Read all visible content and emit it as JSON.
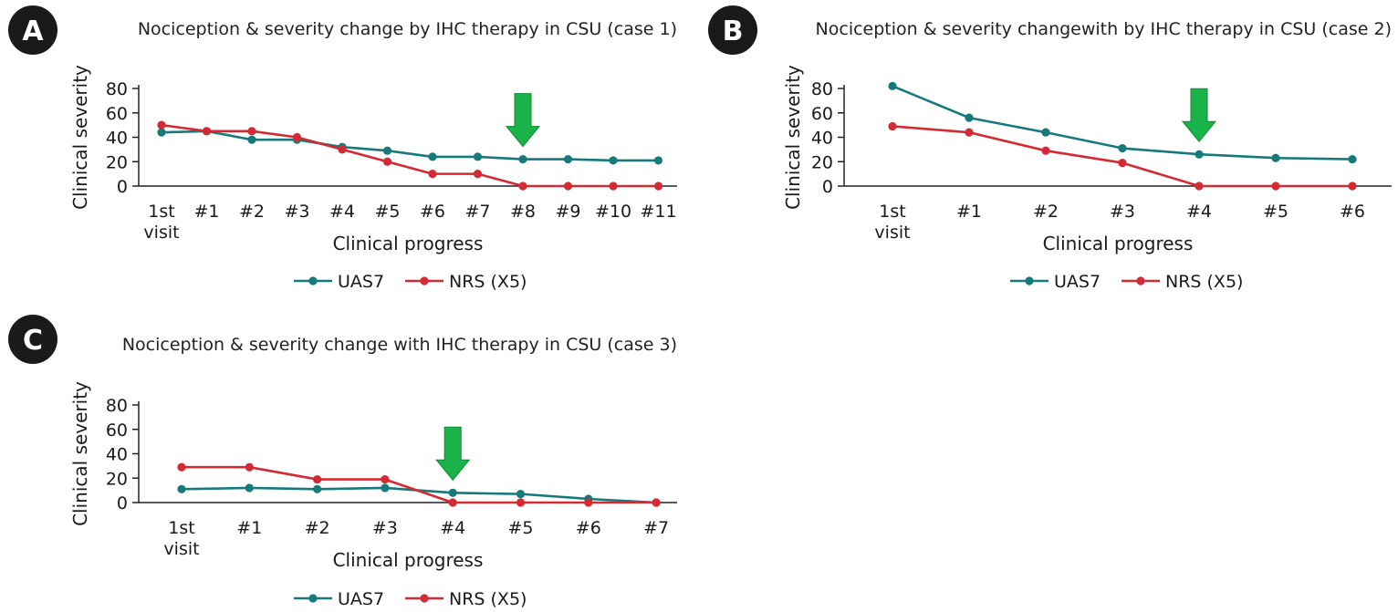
{
  "colors": {
    "uas7": "#177a7a",
    "nrs": "#d42a33",
    "arrow": "#1ab34a",
    "arrow_stroke": "#0e8a35",
    "badge": "#1a1a1a"
  },
  "chart_data": [
    {
      "panel": "A",
      "type": "line",
      "title": "Nociception & severity change by IHC therapy in CSU (case 1)",
      "xlabel": "Clinical progress",
      "ylabel": "Clinical severity",
      "ylim": [
        0,
        80
      ],
      "yticks": [
        0,
        20,
        40,
        60,
        80
      ],
      "categories": [
        [
          "1st",
          "visit"
        ],
        [
          "#1"
        ],
        [
          "#2"
        ],
        [
          "#3"
        ],
        [
          "#4"
        ],
        [
          "#5"
        ],
        [
          "#6"
        ],
        [
          "#7"
        ],
        [
          "#8"
        ],
        [
          "#9"
        ],
        [
          "#10"
        ],
        [
          "#11"
        ]
      ],
      "series": [
        {
          "name": "UAS7",
          "values": [
            44,
            45,
            38,
            38,
            32,
            29,
            24,
            24,
            22,
            22,
            21,
            21
          ]
        },
        {
          "name": "NRS (X5)",
          "values": [
            50,
            45,
            45,
            40,
            30,
            20,
            10,
            10,
            0,
            0,
            0,
            0
          ]
        }
      ],
      "arrow_at": 8,
      "legend": [
        "UAS7",
        "NRS (X5)"
      ]
    },
    {
      "panel": "B",
      "type": "line",
      "title": "Nociception & severity changewith by IHC therapy in CSU (case 2)",
      "xlabel": "Clinical progress",
      "ylabel": "Clinical severity",
      "ylim": [
        0,
        80
      ],
      "yticks": [
        0,
        20,
        40,
        60,
        80
      ],
      "categories": [
        [
          "1st",
          "visit"
        ],
        [
          "#1"
        ],
        [
          "#2"
        ],
        [
          "#3"
        ],
        [
          "#4"
        ],
        [
          "#5"
        ],
        [
          "#6"
        ]
      ],
      "series": [
        {
          "name": "UAS7",
          "values": [
            82,
            56,
            44,
            31,
            26,
            23,
            22
          ]
        },
        {
          "name": "NRS (X5)",
          "values": [
            49,
            44,
            29,
            19,
            0,
            0,
            0
          ]
        }
      ],
      "arrow_at": 4,
      "legend": [
        "UAS7",
        "NRS (X5)"
      ]
    },
    {
      "panel": "C",
      "type": "line",
      "title": "Nociception & severity change with IHC therapy in CSU (case 3)",
      "xlabel": "Clinical progress",
      "ylabel": "Clinical severity",
      "ylim": [
        0,
        80
      ],
      "yticks": [
        0,
        20,
        40,
        60,
        80
      ],
      "categories": [
        [
          "1st",
          "visit"
        ],
        [
          "#1"
        ],
        [
          "#2"
        ],
        [
          "#3"
        ],
        [
          "#4"
        ],
        [
          "#5"
        ],
        [
          "#6"
        ],
        [
          "#7"
        ]
      ],
      "series": [
        {
          "name": "UAS7",
          "values": [
            11,
            12,
            11,
            12,
            8,
            7,
            3,
            0
          ]
        },
        {
          "name": "NRS (X5)",
          "values": [
            29,
            29,
            19,
            19,
            0,
            0,
            0,
            0
          ]
        }
      ],
      "arrow_at": 4,
      "legend": [
        "UAS7",
        "NRS (X5)"
      ]
    }
  ]
}
